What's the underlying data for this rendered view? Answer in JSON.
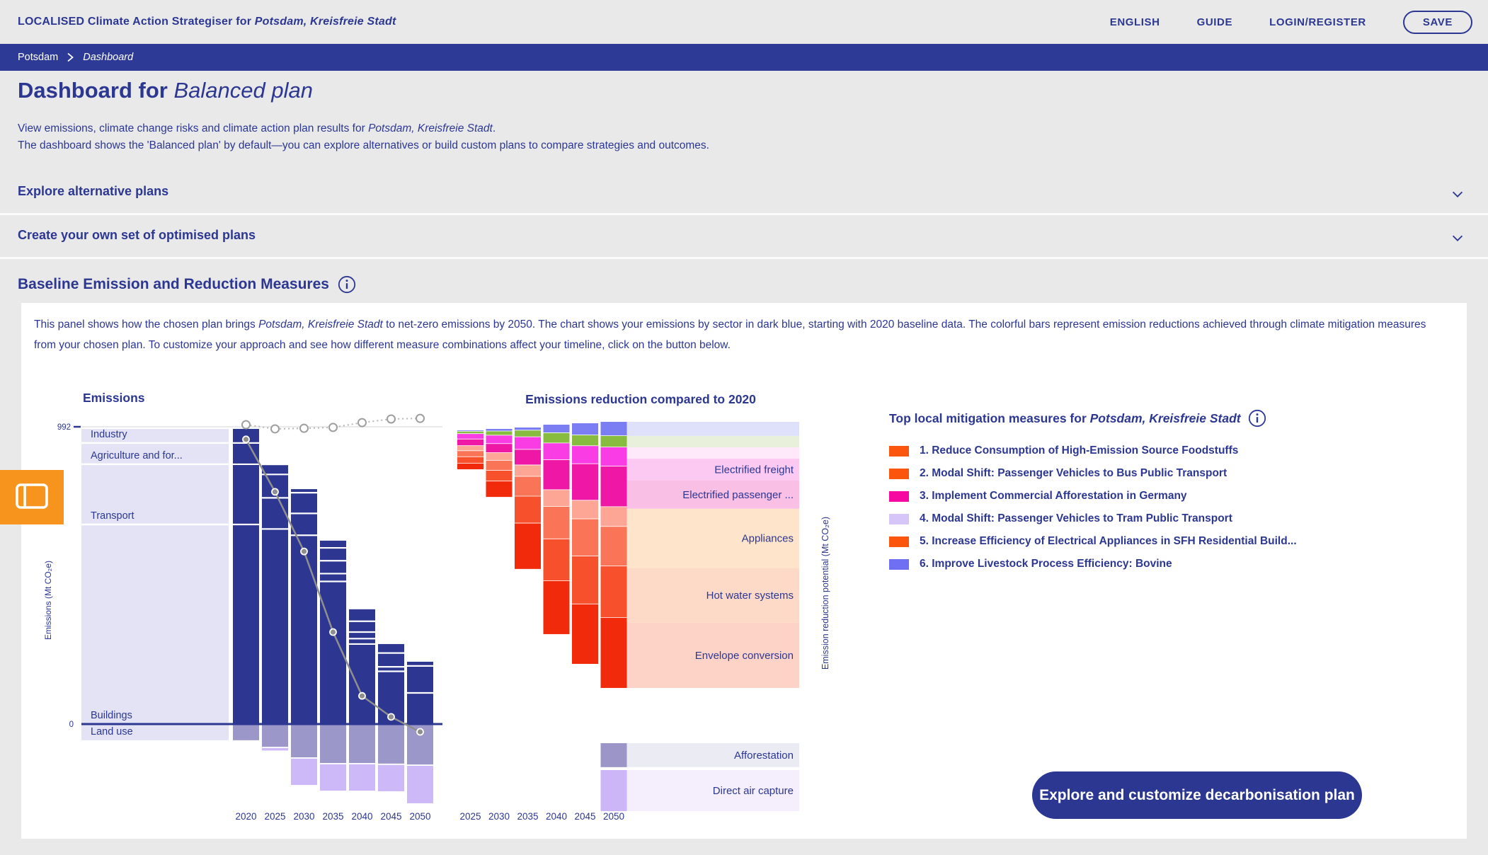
{
  "colors": {
    "primary": "#2c3792",
    "breadcrumb_bg": "#2d3a96",
    "page_bg": "#e9e9ea",
    "panel_bg": "#ffffff",
    "accent_orange": "#f6941d",
    "bar_blue": "#2d3691",
    "block_lavender": "#e3e3f5",
    "landuse_purple": "#9c97c9",
    "dac_purple": "#cdb9f8"
  },
  "header": {
    "brand_prefix": "LOCALISED Climate Action Strategiser for ",
    "brand_city": "Potsdam, Kreisfreie Stadt",
    "nav": [
      "ENGLISH",
      "GUIDE",
      "LOGIN/REGISTER"
    ],
    "save_label": "SAVE"
  },
  "breadcrumb": {
    "items": [
      "Potsdam",
      "Dashboard"
    ]
  },
  "page": {
    "title_prefix": "Dashboard for ",
    "title_plan": "Balanced plan",
    "desc1_pre": "View emissions, climate change risks and climate action plan results for ",
    "desc1_city": "Potsdam, Kreisfreie Stadt",
    "desc1_post": ".",
    "desc2": "The dashboard shows the 'Balanced plan' by default—you can explore alternatives or build custom plans to compare strategies and outcomes."
  },
  "accordions": [
    {
      "label": "Explore alternative plans"
    },
    {
      "label": "Create your own set of optimised plans"
    }
  ],
  "section": {
    "title": "Baseline Emission and Reduction Measures"
  },
  "panel": {
    "intro_pre": "This panel shows how the chosen plan brings ",
    "intro_city": "Potsdam, Kreisfreie Stadt",
    "intro_post": " to net-zero emissions by 2050. The chart shows your emissions by sector in dark blue, starting with 2020 baseline data. The colorful bars represent emission reductions achieved through climate mitigation measures from your chosen plan. To customize your approach and see how different measure combinations affect your timeline, click on the button below.",
    "cta_label": "Explore and customize decarbonisation plan"
  },
  "measures": {
    "title_pre": "Top local mitigation measures for ",
    "title_city": "Potsdam, Kreisfreie Stadt",
    "items": [
      {
        "label": "1. Reduce Consumption of High-Emission Source Foodstuffs",
        "color": "#fb560d"
      },
      {
        "label": "2. Modal Shift: Passenger Vehicles to Bus Public Transport",
        "color": "#fb560d"
      },
      {
        "label": "3. Implement Commercial Afforestation in Germany",
        "color": "#f509a0"
      },
      {
        "label": "4. Modal Shift: Passenger Vehicles to Tram Public Transport",
        "color": "#d5c5f8"
      },
      {
        "label": "5. Increase Efficiency of Electrical Appliances in SFH Residential Build...",
        "color": "#fb560d"
      },
      {
        "label": "6. Improve Livestock Process Efficiency: Bovine",
        "color": "#6f6ff3"
      }
    ]
  },
  "chart_data": [
    {
      "id": "emissions",
      "type": "bar",
      "title": "Emissions",
      "ylabel": "Emissions (Mt CO₂e)",
      "yticks": [
        992,
        0
      ],
      "ylim": [
        -160,
        1050
      ],
      "categories": [
        "2020",
        "2025",
        "2030",
        "2035",
        "2040",
        "2045",
        "2050"
      ],
      "sector_labels": [
        "Industry",
        "Agriculture and for...",
        "Transport",
        "Buildings",
        "Land use"
      ],
      "bar_segments": [
        [
          47,
          71,
          201,
          666
        ],
        [
          31,
          78,
          104,
          651
        ],
        [
          12,
          69,
          73,
          630
        ],
        [
          24,
          43,
          43,
          26,
          476
        ],
        [
          40,
          36,
          22,
          18,
          267
        ],
        [
          30,
          46,
          15,
          176
        ],
        [
          14,
          90,
          104
        ]
      ],
      "totals": [
        985,
        864,
        784,
        612,
        383,
        267,
        208
      ],
      "negative_landuse": [
        -54,
        -76,
        -111,
        -130,
        -130,
        -132,
        -135
      ],
      "negative_dac": [
        0,
        -8,
        -88,
        -88,
        -88,
        -88,
        -125
      ],
      "plan_line": {
        "name": "net-emissions-plan",
        "values": [
          950,
          775,
          576,
          307,
          94,
          24,
          -26
        ]
      },
      "baseline_line": {
        "name": "baseline-trajectory",
        "values": [
          999,
          985,
          987,
          990,
          1006,
          1018,
          1020
        ]
      }
    },
    {
      "id": "reduction",
      "type": "bar",
      "title": "Emissions reduction compared to 2020",
      "ylabel_right": "Emission reduction potential (Mt CO₂e)",
      "categories": [
        "2025",
        "2030",
        "2035",
        "2040",
        "2045",
        "2050"
      ],
      "segment_colors": [
        "#7b7df2",
        "#87bc41",
        "#f93ce4",
        "#ee17a6",
        "#fda695",
        "#fa7557",
        "#f7502d",
        "#f22a0c"
      ],
      "bar_segments": [
        [
          4,
          8,
          18,
          22,
          17,
          20,
          22,
          19
        ],
        [
          8,
          14,
          28,
          30,
          26,
          33,
          36,
          52
        ],
        [
          10,
          22,
          42,
          52,
          38,
          66,
          90,
          152
        ],
        [
          28,
          34,
          56,
          100,
          56,
          108,
          140,
          177
        ],
        [
          40,
          36,
          60,
          122,
          62,
          124,
          160,
          199
        ],
        [
          47,
          38,
          64,
          135,
          66,
          132,
          172,
          234
        ]
      ],
      "totals": [
        130,
        227,
        472,
        699,
        803,
        888
      ],
      "extension_bands": [
        {
          "value": 47,
          "color": "#dfe0fa",
          "label": ""
        },
        {
          "value": 38,
          "color": "#e8f0dc",
          "label": ""
        },
        {
          "value": 38,
          "color": "#fde9fa",
          "label": ""
        },
        {
          "value": 73,
          "color": "#fbc9f2",
          "label": "Electrified freight"
        },
        {
          "value": 94,
          "color": "#f9bfe5",
          "label": "Electrified passenger ..."
        },
        {
          "value": 198,
          "color": "#fde4cb",
          "label": "Appliances"
        },
        {
          "value": 182,
          "color": "#fddac8",
          "label": "Hot water systems"
        },
        {
          "value": 218,
          "color": "#fdd3c8",
          "label": "Envelope conversion"
        }
      ],
      "negative_rows": [
        {
          "label": "Afforestation",
          "value": 80,
          "color": "#9c96c8",
          "band_color": "#ebebf4"
        },
        {
          "label": "Direct air capture",
          "value": 137,
          "color": "#cdb6f8",
          "band_color": "#f4eefd"
        }
      ]
    }
  ]
}
